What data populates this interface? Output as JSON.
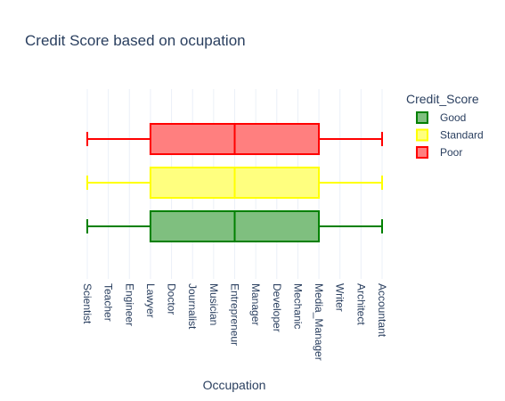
{
  "chart_data": {
    "type": "box",
    "title": "Credit Score based on ocupation",
    "xlabel": "Occupation",
    "ylabel": "",
    "categories": [
      "Scientist",
      "Teacher",
      "Engineer",
      "Lawyer",
      "Doctor",
      "Journalist",
      "Musician",
      "Entrepreneur",
      "Manager",
      "Developer",
      "Mechanic",
      "Media_Manager",
      "Writer",
      "Architect",
      "Accountant"
    ],
    "legend_title": "Credit_Score",
    "legend_position": "top-right",
    "orientation": "horizontal",
    "grid": true,
    "series": [
      {
        "name": "Good",
        "color": "#008000",
        "fill": "#7fbf7f",
        "min": "Scientist",
        "q1": "Lawyer",
        "median": "Entrepreneur",
        "q3": "Media_Manager",
        "max": "Accountant"
      },
      {
        "name": "Standard",
        "color": "#ffff00",
        "fill": "#ffff7f",
        "min": "Scientist",
        "q1": "Lawyer",
        "median": "Entrepreneur",
        "q3": "Media_Manager",
        "max": "Accountant"
      },
      {
        "name": "Poor",
        "color": "#ff0000",
        "fill": "#ff7f7f",
        "min": "Scientist",
        "q1": "Lawyer",
        "median": "Entrepreneur",
        "q3": "Media_Manager",
        "max": "Accountant"
      }
    ]
  }
}
